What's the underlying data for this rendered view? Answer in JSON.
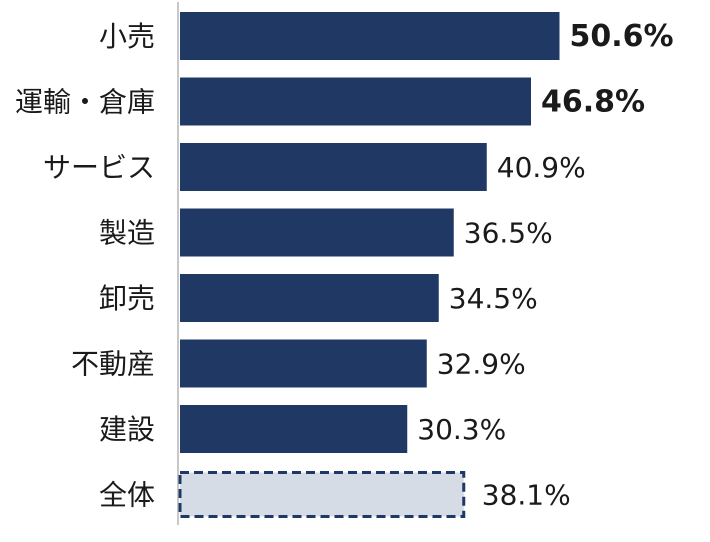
{
  "chart_data": {
    "type": "bar",
    "orientation": "horizontal",
    "categories": [
      "小売",
      "運輸・倉庫",
      "サービス",
      "製造",
      "卸売",
      "不動産",
      "建設",
      "全体"
    ],
    "values": [
      50.6,
      46.8,
      40.9,
      36.5,
      34.5,
      32.9,
      30.3,
      38.1
    ],
    "value_labels": [
      "50.6%",
      "46.8%",
      "40.9%",
      "36.5%",
      "34.5%",
      "32.9%",
      "30.3%",
      "38.1%"
    ],
    "bold_labels": [
      true,
      true,
      false,
      false,
      false,
      false,
      false,
      false
    ],
    "xlim": [
      0,
      60
    ],
    "grid": false,
    "legend": "none",
    "colors": {
      "bar": "#203864",
      "total_fill": "#d6dce5",
      "total_border": "#203864",
      "axis": "#c8c8c8"
    }
  }
}
